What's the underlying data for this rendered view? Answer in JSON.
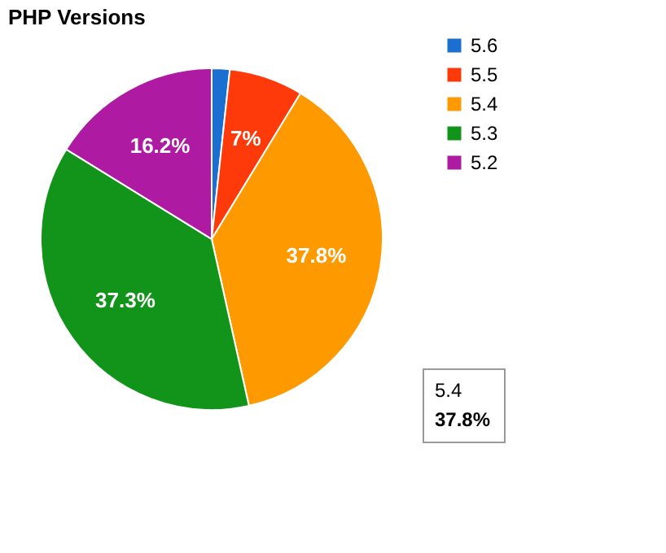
{
  "chart_data": {
    "type": "pie",
    "title": "PHP Versions",
    "categories": [
      "5.6",
      "5.5",
      "5.4",
      "5.3",
      "5.2"
    ],
    "values": [
      1.7,
      7,
      37.8,
      37.3,
      16.2
    ],
    "colors": [
      "#1a6fd1",
      "#fe3a0a",
      "#ff9900",
      "#12941a",
      "#ae1aa1"
    ],
    "value_labels": [
      null,
      "7%",
      "37.8%",
      "37.3%",
      "16.2%"
    ],
    "legend": "top right",
    "annotations": [
      "5.4",
      "37.8%"
    ]
  }
}
